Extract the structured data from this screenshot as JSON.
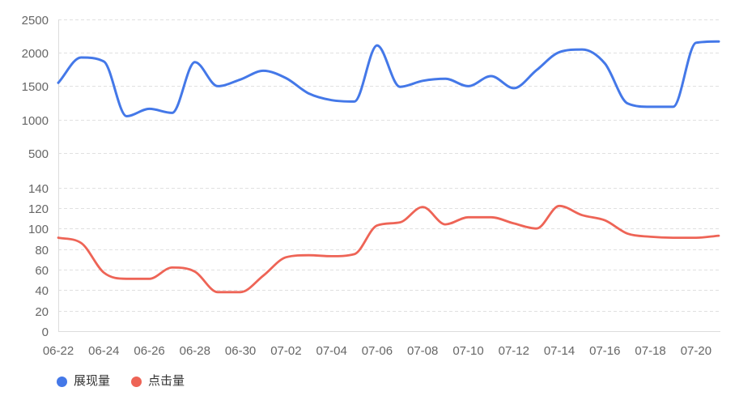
{
  "chart_data": {
    "type": "line",
    "smooth": true,
    "grid": "horizontal-dashed",
    "legend_position": "bottom-left",
    "x": [
      "06-22",
      "06-23",
      "06-24",
      "06-25",
      "06-26",
      "06-27",
      "06-28",
      "06-29",
      "06-30",
      "07-01",
      "07-02",
      "07-03",
      "07-04",
      "07-05",
      "07-06",
      "07-07",
      "07-08",
      "07-09",
      "07-10",
      "07-11",
      "07-12",
      "07-13",
      "07-14",
      "07-15",
      "07-16",
      "07-17",
      "07-18",
      "07-19",
      "07-20",
      "07-21"
    ],
    "x_tick_labels": [
      "06-22",
      "06-24",
      "06-26",
      "06-28",
      "06-30",
      "07-02",
      "07-04",
      "07-06",
      "07-08",
      "07-10",
      "07-12",
      "07-14",
      "07-16",
      "07-18",
      "07-20"
    ],
    "panels": [
      {
        "id": "impressions-panel",
        "ylim": [
          0,
          2500
        ],
        "yticks": [
          500,
          1000,
          1500,
          2000,
          2500
        ]
      },
      {
        "id": "clicks-panel",
        "ylim": [
          0,
          140
        ],
        "yticks": [
          0,
          20,
          40,
          60,
          80,
          100,
          120,
          140
        ]
      }
    ],
    "series": [
      {
        "name": "展现量",
        "panel": 0,
        "color": "#4478e8",
        "values": [
          1550,
          1930,
          1870,
          1050,
          1160,
          1100,
          1860,
          1500,
          1600,
          1730,
          1620,
          1390,
          1290,
          1270,
          2110,
          1490,
          1580,
          1610,
          1500,
          1650,
          1470,
          1740,
          2010,
          2050,
          1840,
          1240,
          1190,
          1190,
          2150,
          2170
        ]
      },
      {
        "name": "点击量",
        "panel": 1,
        "color": "#ee6456",
        "values": [
          91,
          86,
          57,
          51,
          51,
          62,
          58,
          38,
          38,
          54,
          72,
          74,
          73,
          75,
          103,
          106,
          121,
          104,
          111,
          111,
          105,
          100,
          122,
          113,
          108,
          95,
          92,
          91,
          91,
          93
        ]
      }
    ]
  },
  "colors": {
    "grid": "#e0e0e0",
    "axis": "#dcdcdc",
    "tick_text": "#666666",
    "legend_text": "#333333",
    "background": "#ffffff"
  }
}
